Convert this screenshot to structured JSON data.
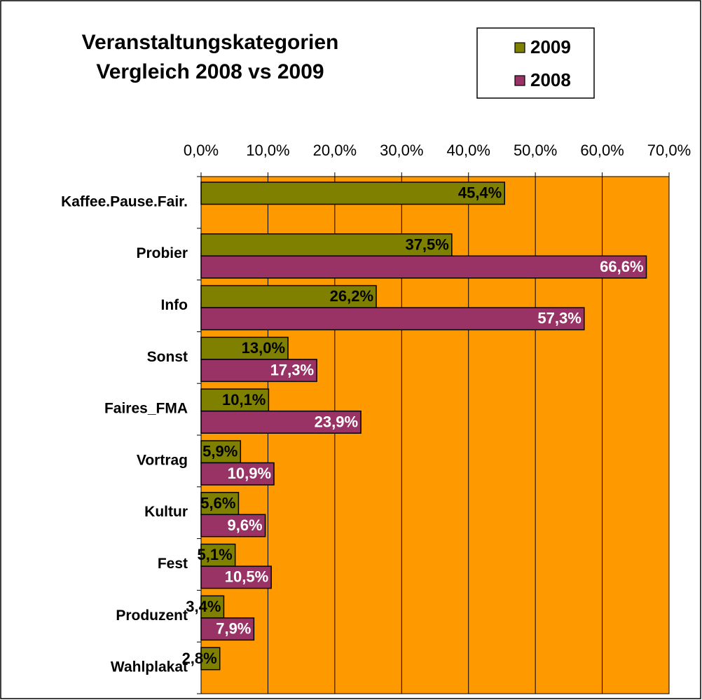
{
  "chart_data": {
    "type": "hbar",
    "title": "Veranstaltungskategorien Vergleich 2008 vs 2009",
    "categories": [
      "Kaffee.Pause.Fair.",
      "Probier",
      "Info",
      "Sonst",
      "Faires_FMA",
      "Vortrag",
      "Kultur",
      "Fest",
      "Produzent",
      "Wahlplakat"
    ],
    "series": [
      {
        "name": "2009",
        "color": "#808000",
        "values": [
          45.4,
          37.5,
          26.2,
          13.0,
          10.1,
          5.9,
          5.6,
          5.1,
          3.4,
          2.8
        ],
        "value_labels": [
          "45,4%",
          "37,5%",
          "26,2%",
          "13,0%",
          "10,1%",
          "5,9%",
          "5,6%",
          "5,1%",
          "3,4%",
          "2,8%"
        ]
      },
      {
        "name": "2008",
        "color": "#993366",
        "values": [
          null,
          66.6,
          57.3,
          17.3,
          23.9,
          10.9,
          9.6,
          10.5,
          7.9,
          null
        ],
        "value_labels": [
          null,
          "66,6%",
          "57,3%",
          "17,3%",
          "23,9%",
          "10,9%",
          "9,6%",
          "10,5%",
          "7,9%",
          null
        ]
      }
    ],
    "xlim": [
      0,
      70
    ],
    "xticks": [
      {
        "value": 0,
        "label": "0,0%"
      },
      {
        "value": 10,
        "label": "10,0%"
      },
      {
        "value": 20,
        "label": "20,0%"
      },
      {
        "value": 30,
        "label": "30,0%"
      },
      {
        "value": 40,
        "label": "40,0%"
      },
      {
        "value": 50,
        "label": "50,0%"
      },
      {
        "value": 60,
        "label": "60,0%"
      },
      {
        "value": 70,
        "label": "70,0%"
      }
    ],
    "grid": true,
    "plot_background": "#ff9900",
    "legend": "upper right"
  }
}
